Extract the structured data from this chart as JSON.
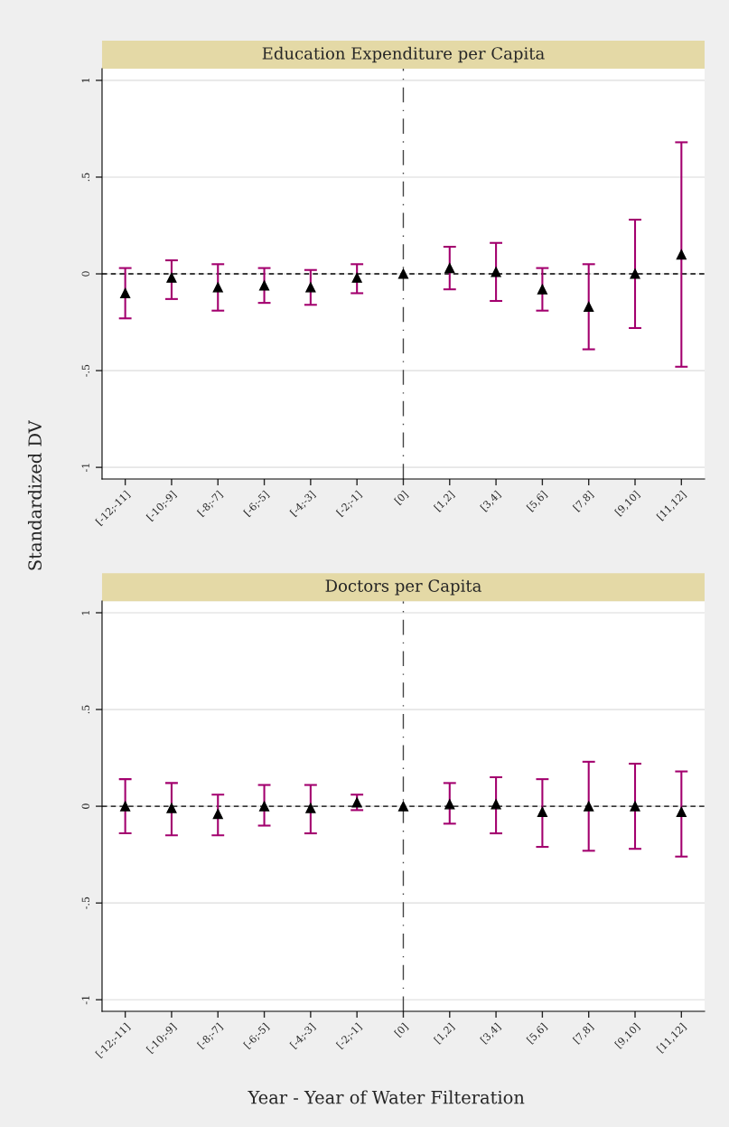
{
  "chart_data": [
    {
      "type": "scatter",
      "title": "Education Expenditure per Capita",
      "ylabel": "Standardized DV",
      "categories": [
        "[-12;-11]",
        "[-10;-9]",
        "[-8;-7]",
        "[-6;-5]",
        "[-4;-3]",
        "[-2;-1]",
        "[0]",
        "[1,2]",
        "[3,4]",
        "[5,6]",
        "[7,8]",
        "[9,10]",
        "[11,12]"
      ],
      "series": [
        {
          "color": "#000000",
          "values": [
            -0.1,
            -0.02,
            -0.07,
            -0.06,
            -0.07,
            -0.02,
            0,
            0.03,
            0.01,
            -0.08,
            -0.17,
            0.0,
            0.1
          ],
          "errors": [
            [
              -0.23,
              0.03
            ],
            [
              -0.13,
              0.07
            ],
            [
              -0.19,
              0.05
            ],
            [
              -0.15,
              0.03
            ],
            [
              -0.16,
              0.02
            ],
            [
              -0.1,
              0.05
            ],
            null,
            [
              -0.08,
              0.14
            ],
            [
              -0.14,
              0.16
            ],
            [
              -0.19,
              0.03
            ],
            [
              -0.39,
              0.05
            ],
            [
              -0.28,
              0.28
            ],
            [
              -0.48,
              0.68
            ]
          ]
        }
      ],
      "ylim": [
        -1.06,
        1.06
      ],
      "yticks": [
        {
          "value": -1,
          "label": "-1"
        },
        {
          "value": -0.5,
          "label": "-.5"
        },
        0,
        {
          "value": 0.5,
          "label": ".5"
        },
        1
      ],
      "grid": "y",
      "marker": "triangle",
      "ref_lines": [
        {
          "axis": "y",
          "value": 0,
          "line_style": "dashed",
          "color": "#000000"
        },
        {
          "axis": "x",
          "value": "[0]",
          "line_style": "dashdot",
          "color": "#444444"
        }
      ]
    },
    {
      "type": "scatter",
      "title": "Doctors per Capita",
      "xlabel": "Year - Year of Water Filteration",
      "categories": [
        "[-12;-11]",
        "[-10;-9]",
        "[-8;-7]",
        "[-6;-5]",
        "[-4;-3]",
        "[-2;-1]",
        "[0]",
        "[1,2]",
        "[3,4]",
        "[5,6]",
        "[7,8]",
        "[9,10]",
        "[11,12]"
      ],
      "series": [
        {
          "color": "#000000",
          "values": [
            0.0,
            -0.01,
            -0.04,
            0.0,
            -0.01,
            0.02,
            0,
            0.01,
            0.01,
            -0.03,
            0.0,
            0.0,
            -0.03
          ],
          "errors": [
            [
              -0.14,
              0.14
            ],
            [
              -0.15,
              0.12
            ],
            [
              -0.15,
              0.06
            ],
            [
              -0.1,
              0.11
            ],
            [
              -0.14,
              0.11
            ],
            [
              -0.02,
              0.06
            ],
            null,
            [
              -0.09,
              0.12
            ],
            [
              -0.14,
              0.15
            ],
            [
              -0.21,
              0.14
            ],
            [
              -0.23,
              0.23
            ],
            [
              -0.22,
              0.22
            ],
            [
              -0.26,
              0.18
            ]
          ]
        }
      ],
      "ylim": [
        -1.06,
        1.06
      ],
      "yticks": [
        {
          "value": -1,
          "label": "-1"
        },
        {
          "value": -0.5,
          "label": "-.5"
        },
        0,
        {
          "value": 0.5,
          "label": ".5"
        },
        1
      ],
      "grid": "y",
      "marker": "triangle",
      "ref_lines": [
        {
          "axis": "y",
          "value": 0,
          "line_style": "dashed",
          "color": "#000000"
        },
        {
          "axis": "x",
          "value": "[0]",
          "line_style": "dashdot",
          "color": "#444444"
        }
      ]
    }
  ]
}
